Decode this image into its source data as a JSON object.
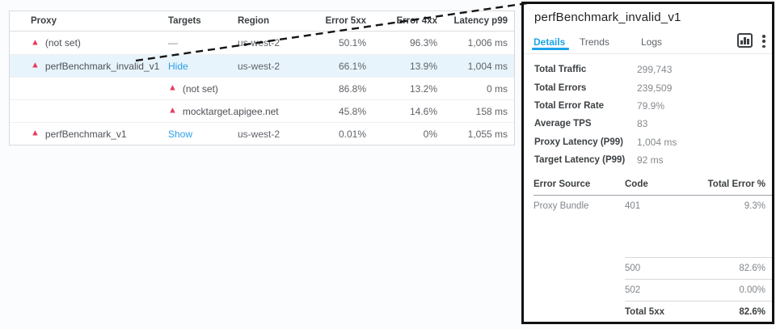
{
  "colors": {
    "accent_blue": "#1ba3e8",
    "link_blue": "#2aa0e8",
    "warning_pink": "#ea3a5e",
    "selected_row_bg": "#e8f4fb",
    "panel_border": "#111111",
    "annotation_line": "#141414"
  },
  "proxy_table": {
    "columns": [
      "Proxy",
      "Targets",
      "Region",
      "Error 5xx",
      "Error 4xx",
      "Latency p99"
    ],
    "rows": [
      {
        "proxy": "(not set)",
        "proxy_warn": true,
        "targets": "—",
        "targets_is_link": false,
        "region": "us-west-2",
        "error_5xx": "50.1%",
        "error_4xx": "96.3%",
        "latency_p99": "1,006 ms",
        "selected": false
      },
      {
        "proxy": "perfBenchmark_invalid_v1",
        "proxy_warn": true,
        "targets": "Hide",
        "targets_is_link": true,
        "region": "us-west-2",
        "error_5xx": "66.1%",
        "error_4xx": "13.9%",
        "latency_p99": "1,004 ms",
        "selected": true
      },
      {
        "proxy": "",
        "target_name": "(not set)",
        "target_warn": true,
        "region": "",
        "error_5xx": "86.8%",
        "error_4xx": "13.2%",
        "latency_p99": "0 ms",
        "selected": false
      },
      {
        "proxy": "",
        "target_name": "mocktarget.apigee.net",
        "target_warn": true,
        "region": "",
        "error_5xx": "45.8%",
        "error_4xx": "14.6%",
        "latency_p99": "158 ms",
        "selected": false
      },
      {
        "proxy": "perfBenchmark_v1",
        "proxy_warn": true,
        "targets": "Show",
        "targets_is_link": true,
        "region": "us-west-2",
        "error_5xx": "0.01%",
        "error_4xx": "0%",
        "latency_p99": "1,055 ms",
        "selected": false
      }
    ]
  },
  "detail_panel": {
    "title": "perfBenchmark_invalid_v1",
    "tabs": [
      {
        "label": "Details",
        "active": true
      },
      {
        "label": "Trends",
        "active": false
      },
      {
        "label": "Logs",
        "active": false
      }
    ],
    "icons": [
      "bar-chart-icon",
      "kebab-menu-icon"
    ],
    "stats": [
      {
        "label": "Total Traffic",
        "value": "299,743"
      },
      {
        "label": "Total Errors",
        "value": "239,509"
      },
      {
        "label": "Total Error Rate",
        "value": "79.9%"
      },
      {
        "label": "Average TPS",
        "value": "83"
      },
      {
        "label": "Proxy Latency (P99)",
        "value": "1,004 ms"
      },
      {
        "label": "Target Latency (P99)",
        "value": "92 ms"
      }
    ],
    "error_table": {
      "columns": [
        "Error Source",
        "Code",
        "Total Error %"
      ],
      "rows": [
        {
          "source": "Proxy Bundle",
          "code": "401",
          "pct": "9.3%",
          "ruled": false,
          "bold": false
        },
        {
          "spacer": true
        },
        {
          "source": "",
          "code": "500",
          "pct": "82.6%",
          "ruled": true,
          "bold": false
        },
        {
          "source": "",
          "code": "502",
          "pct": "0.00%",
          "ruled": true,
          "bold": false
        },
        {
          "source": "",
          "code": "Total 5xx",
          "pct": "82.6%",
          "ruled": true,
          "bold": true
        }
      ]
    }
  }
}
